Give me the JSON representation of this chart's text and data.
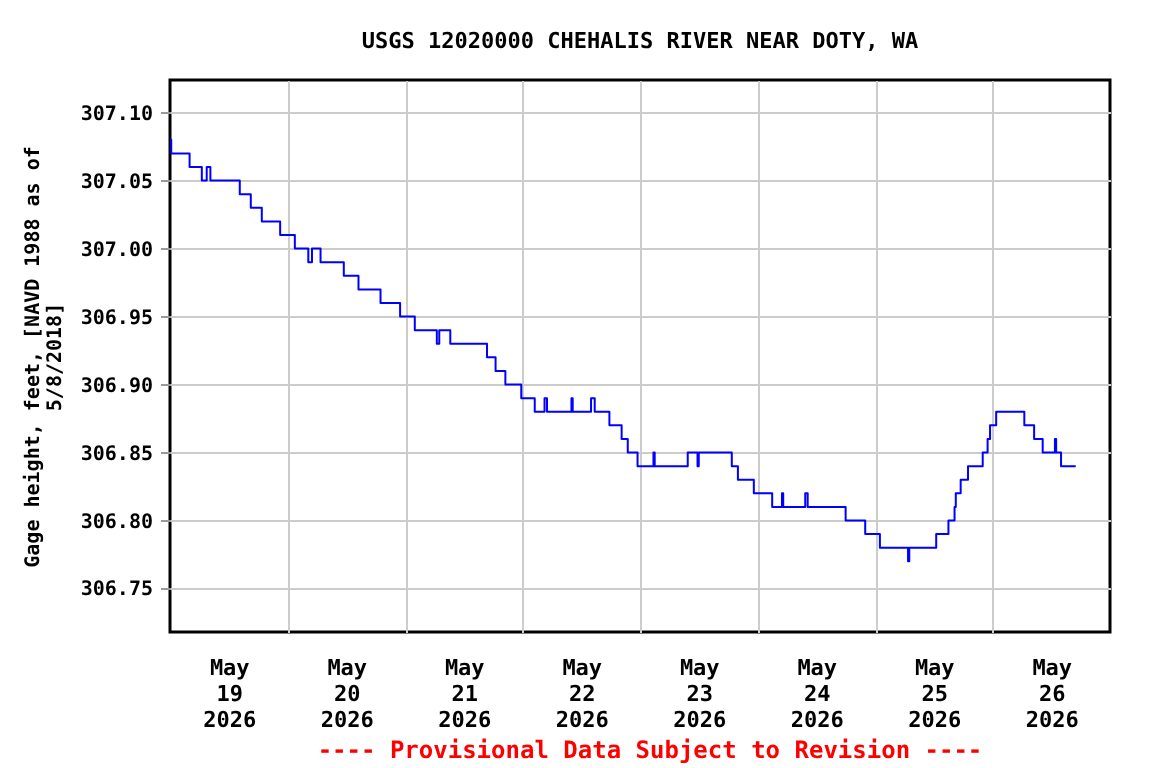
{
  "chart_data": {
    "type": "step",
    "title": "USGS 12020000 CHEHALIS RIVER NEAR DOTY, WA",
    "ylabel": "Gage height, feet, [NAVD 1988 as of\n5/8/2018]",
    "annotations": [
      "---- Provisional Data Subject to Revision ----"
    ],
    "color": "#0000ff",
    "grid": true,
    "x": [
      "2026-05-19T00:00",
      "2026-05-19T00:15",
      "2026-05-19T04:00",
      "2026-05-19T06:30",
      "2026-05-19T07:30",
      "2026-05-19T08:15",
      "2026-05-19T14:15",
      "2026-05-19T16:30",
      "2026-05-19T18:45",
      "2026-05-19T22:30",
      "2026-05-20T01:30",
      "2026-05-20T04:15",
      "2026-05-20T05:00",
      "2026-05-20T06:45",
      "2026-05-20T11:30",
      "2026-05-20T14:30",
      "2026-05-20T19:00",
      "2026-05-20T23:00",
      "2026-05-21T02:00",
      "2026-05-21T06:30",
      "2026-05-21T07:00",
      "2026-05-21T09:15",
      "2026-05-21T16:45",
      "2026-05-21T18:30",
      "2026-05-21T20:30",
      "2026-05-21T23:45",
      "2026-05-22T02:30",
      "2026-05-22T04:30",
      "2026-05-22T05:00",
      "2026-05-22T10:00",
      "2026-05-22T10:15",
      "2026-05-22T14:00",
      "2026-05-22T14:45",
      "2026-05-22T17:45",
      "2026-05-22T20:15",
      "2026-05-22T21:30",
      "2026-05-22T23:30",
      "2026-05-23T02:45",
      "2026-05-23T03:00",
      "2026-05-23T09:45",
      "2026-05-23T11:45",
      "2026-05-23T12:00",
      "2026-05-23T18:45",
      "2026-05-23T20:00",
      "2026-05-23T23:15",
      "2026-05-24T03:00",
      "2026-05-24T05:00",
      "2026-05-24T05:15",
      "2026-05-24T09:45",
      "2026-05-24T10:15",
      "2026-05-24T18:00",
      "2026-05-24T22:00",
      "2026-05-25T01:00",
      "2026-05-25T06:45",
      "2026-05-25T07:00",
      "2026-05-25T12:30",
      "2026-05-25T15:00",
      "2026-05-25T16:15",
      "2026-05-25T16:30",
      "2026-05-25T17:30",
      "2026-05-25T19:00",
      "2026-05-25T22:00",
      "2026-05-25T23:00",
      "2026-05-25T23:30",
      "2026-05-26T00:45",
      "2026-05-26T06:30",
      "2026-05-26T08:30",
      "2026-05-26T10:15",
      "2026-05-26T12:45",
      "2026-05-26T13:00",
      "2026-05-26T14:00",
      "2026-05-26T17:00"
    ],
    "values": [
      307.08,
      307.07,
      307.06,
      307.05,
      307.06,
      307.05,
      307.04,
      307.03,
      307.02,
      307.01,
      307.0,
      306.99,
      307.0,
      306.99,
      306.98,
      306.97,
      306.96,
      306.95,
      306.94,
      306.93,
      306.94,
      306.93,
      306.92,
      306.91,
      306.9,
      306.89,
      306.88,
      306.89,
      306.88,
      306.89,
      306.88,
      306.89,
      306.88,
      306.87,
      306.86,
      306.85,
      306.84,
      306.85,
      306.84,
      306.85,
      306.84,
      306.85,
      306.84,
      306.83,
      306.82,
      306.81,
      306.82,
      306.81,
      306.82,
      306.81,
      306.8,
      306.79,
      306.78,
      306.77,
      306.78,
      306.79,
      306.8,
      306.81,
      306.82,
      306.83,
      306.84,
      306.85,
      306.86,
      306.87,
      306.88,
      306.87,
      306.86,
      306.85,
      306.86,
      306.85,
      306.84,
      306.84
    ],
    "xlim": [
      "2026-05-19T00:00",
      "2026-05-27T00:00"
    ],
    "xticks": [
      {
        "value": "2026-05-20T00:00",
        "label": null
      },
      {
        "value": "2026-05-21T00:00",
        "label": null
      },
      {
        "value": "2026-05-22T00:00",
        "label": null
      },
      {
        "value": "2026-05-23T00:00",
        "label": null
      },
      {
        "value": "2026-05-24T00:00",
        "label": null
      },
      {
        "value": "2026-05-25T00:00",
        "label": null
      },
      {
        "value": "2026-05-26T00:00",
        "label": null
      },
      {
        "value": "2026-05-19T12:00",
        "label": "May\n19\n2026"
      },
      {
        "value": "2026-05-20T12:00",
        "label": "May\n20\n2026"
      },
      {
        "value": "2026-05-21T12:00",
        "label": "May\n21\n2026"
      },
      {
        "value": "2026-05-22T12:00",
        "label": "May\n22\n2026"
      },
      {
        "value": "2026-05-23T12:00",
        "label": "May\n23\n2026"
      },
      {
        "value": "2026-05-24T12:00",
        "label": "May\n24\n2026"
      },
      {
        "value": "2026-05-25T12:00",
        "label": "May\n25\n2026"
      },
      {
        "value": "2026-05-26T12:00",
        "label": "May\n26\n2026"
      }
    ],
    "ylim": [
      306.718,
      307.124
    ],
    "yticks": [
      {
        "value": 306.75,
        "label": "306.75"
      },
      {
        "value": 306.8,
        "label": "306.80"
      },
      {
        "value": 306.85,
        "label": "306.85"
      },
      {
        "value": 306.9,
        "label": "306.90"
      },
      {
        "value": 306.95,
        "label": "306.95"
      },
      {
        "value": 307.0,
        "label": "307.00"
      },
      {
        "value": 307.05,
        "label": "307.05"
      },
      {
        "value": 307.1,
        "label": "307.10"
      }
    ]
  }
}
